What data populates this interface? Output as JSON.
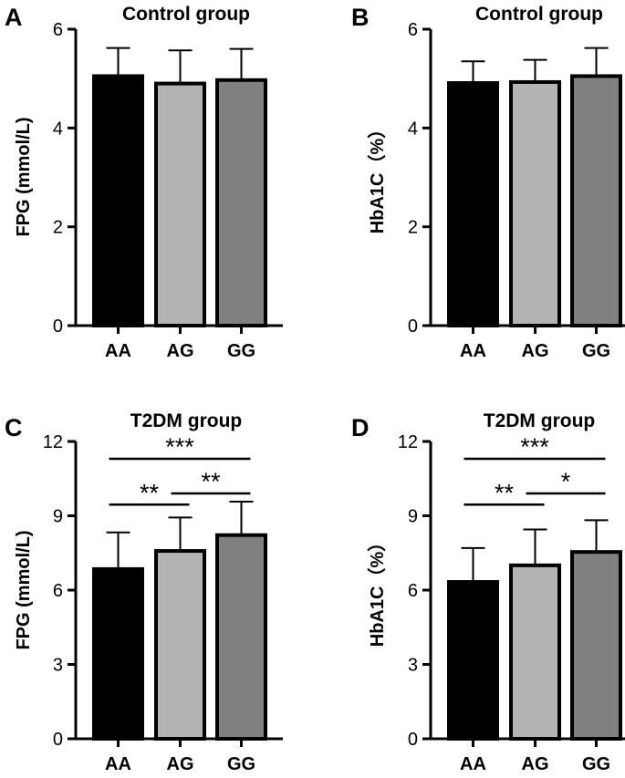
{
  "chart_data": [
    {
      "panel": "A",
      "type": "bar",
      "title": "Control group",
      "ylabel": "FPG (mmol/L)",
      "categories": [
        "AA",
        "AG",
        "GG"
      ],
      "values": [
        5.05,
        4.9,
        4.97
      ],
      "errors": [
        0.57,
        0.67,
        0.63
      ],
      "colors": [
        "#000000",
        "#b3b3b3",
        "#808080"
      ],
      "ylim": [
        0,
        6
      ],
      "yticks": [
        0,
        2,
        4,
        6
      ],
      "significance": []
    },
    {
      "panel": "B",
      "type": "bar",
      "title": "Control group",
      "ylabel": "HbA1C（%）",
      "categories": [
        "AA",
        "AG",
        "GG"
      ],
      "values": [
        4.91,
        4.93,
        5.05
      ],
      "errors": [
        0.44,
        0.45,
        0.57
      ],
      "colors": [
        "#000000",
        "#b3b3b3",
        "#808080"
      ],
      "ylim": [
        0,
        6
      ],
      "yticks": [
        0,
        2,
        4,
        6
      ],
      "significance": []
    },
    {
      "panel": "C",
      "type": "bar",
      "title": "T2DM group",
      "ylabel": "FPG (mmol/L)",
      "categories": [
        "AA",
        "AG",
        "GG"
      ],
      "values": [
        6.85,
        7.58,
        8.22
      ],
      "errors": [
        1.48,
        1.35,
        1.35
      ],
      "colors": [
        "#000000",
        "#b3b3b3",
        "#808080"
      ],
      "ylim": [
        0,
        12
      ],
      "yticks": [
        0,
        3,
        6,
        9,
        12
      ],
      "significance": [
        {
          "from": 0,
          "to": 2,
          "label": "***",
          "y": 11.3
        },
        {
          "from": 0,
          "to": 1,
          "label": "**",
          "y": 9.45
        },
        {
          "from": 1,
          "to": 2,
          "label": "**",
          "y": 9.9
        }
      ]
    },
    {
      "panel": "D",
      "type": "bar",
      "title": "T2DM group",
      "ylabel": "HbA1C（%）",
      "categories": [
        "AA",
        "AG",
        "GG"
      ],
      "values": [
        6.33,
        7.0,
        7.54
      ],
      "errors": [
        1.37,
        1.45,
        1.28
      ],
      "colors": [
        "#000000",
        "#b3b3b3",
        "#808080"
      ],
      "ylim": [
        0,
        12
      ],
      "yticks": [
        0,
        3,
        6,
        9,
        12
      ],
      "significance": [
        {
          "from": 0,
          "to": 2,
          "label": "***",
          "y": 11.3
        },
        {
          "from": 0,
          "to": 1,
          "label": "**",
          "y": 9.45
        },
        {
          "from": 1,
          "to": 2,
          "label": "*",
          "y": 9.9
        }
      ]
    }
  ]
}
